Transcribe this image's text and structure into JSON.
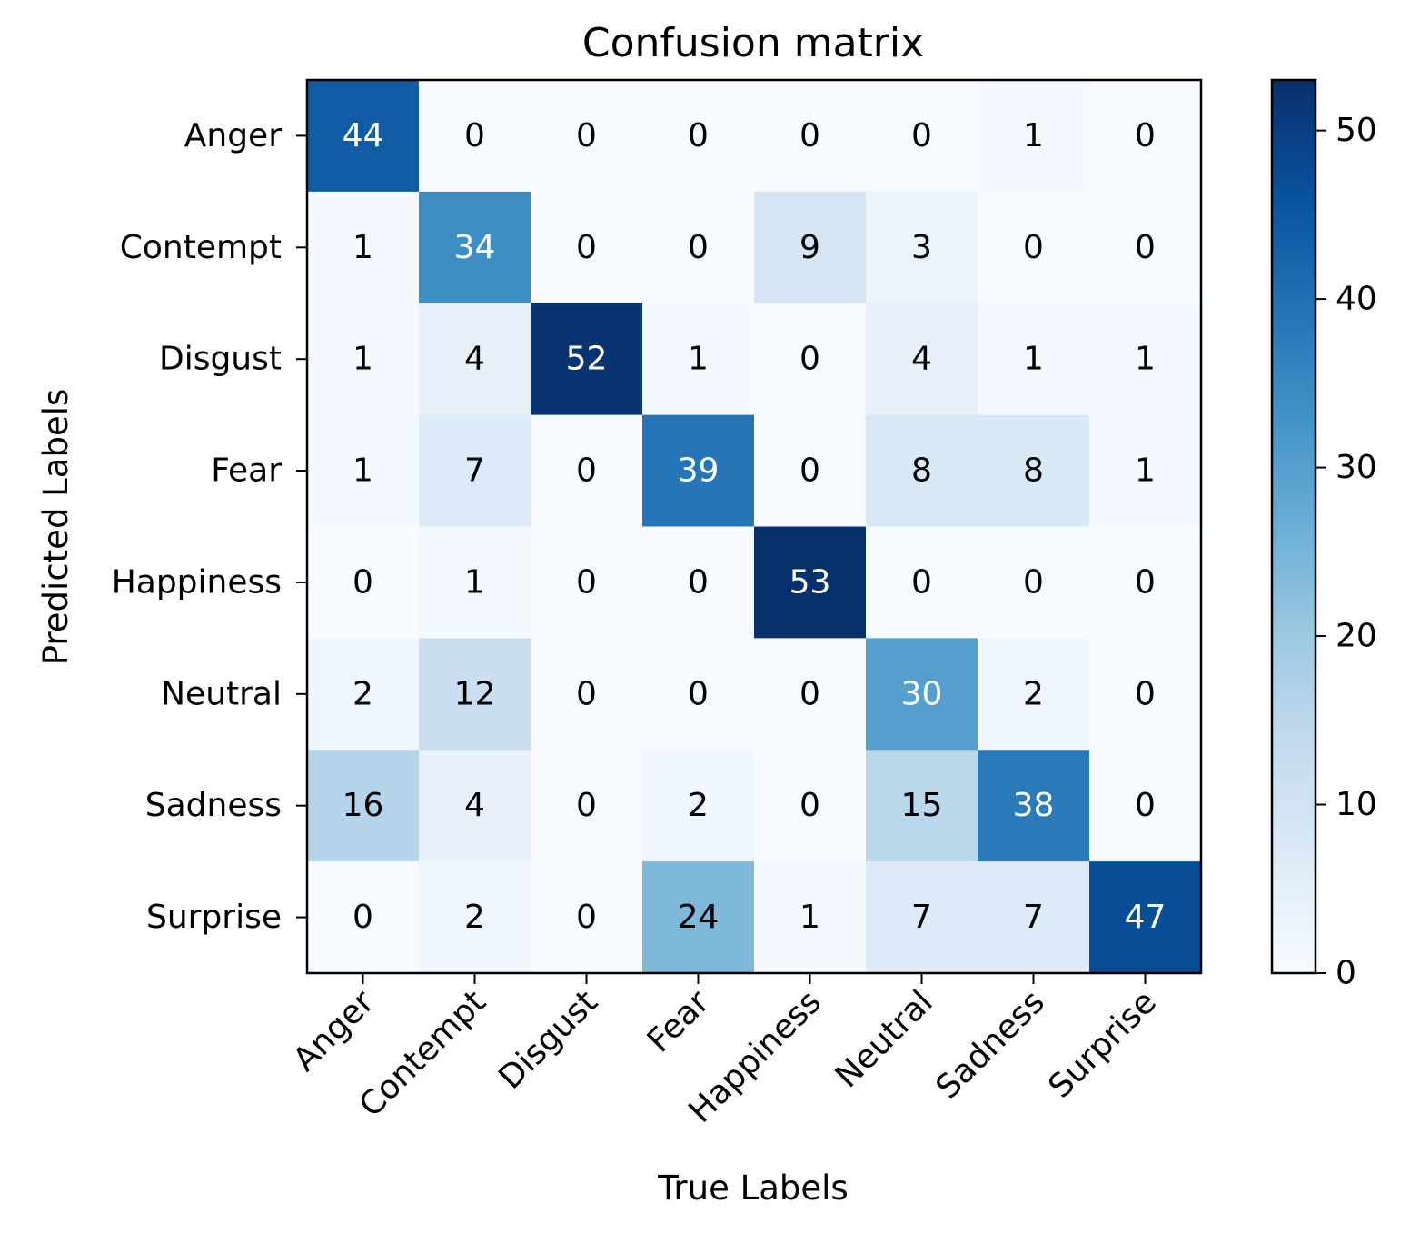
{
  "chart_data": {
    "type": "heatmap",
    "title": "Confusion matrix",
    "xlabel": "True Labels",
    "ylabel": "Predicted Labels",
    "x_categories": [
      "Anger",
      "Contempt",
      "Disgust",
      "Fear",
      "Happiness",
      "Neutral",
      "Sadness",
      "Surprise"
    ],
    "y_categories": [
      "Anger",
      "Contempt",
      "Disgust",
      "Fear",
      "Happiness",
      "Neutral",
      "Sadness",
      "Surprise"
    ],
    "values": [
      [
        44,
        0,
        0,
        0,
        0,
        0,
        1,
        0
      ],
      [
        1,
        34,
        0,
        0,
        9,
        3,
        0,
        0
      ],
      [
        1,
        4,
        52,
        1,
        0,
        4,
        1,
        1
      ],
      [
        1,
        7,
        0,
        39,
        0,
        8,
        8,
        1
      ],
      [
        0,
        1,
        0,
        0,
        53,
        0,
        0,
        0
      ],
      [
        2,
        12,
        0,
        0,
        0,
        30,
        2,
        0
      ],
      [
        16,
        4,
        0,
        2,
        0,
        15,
        38,
        0
      ],
      [
        0,
        2,
        0,
        24,
        1,
        7,
        7,
        47
      ]
    ],
    "colormap": "Blues",
    "vmin": 0,
    "vmax": 53,
    "colorbar_ticks": [
      0,
      10,
      20,
      30,
      40,
      50
    ]
  }
}
